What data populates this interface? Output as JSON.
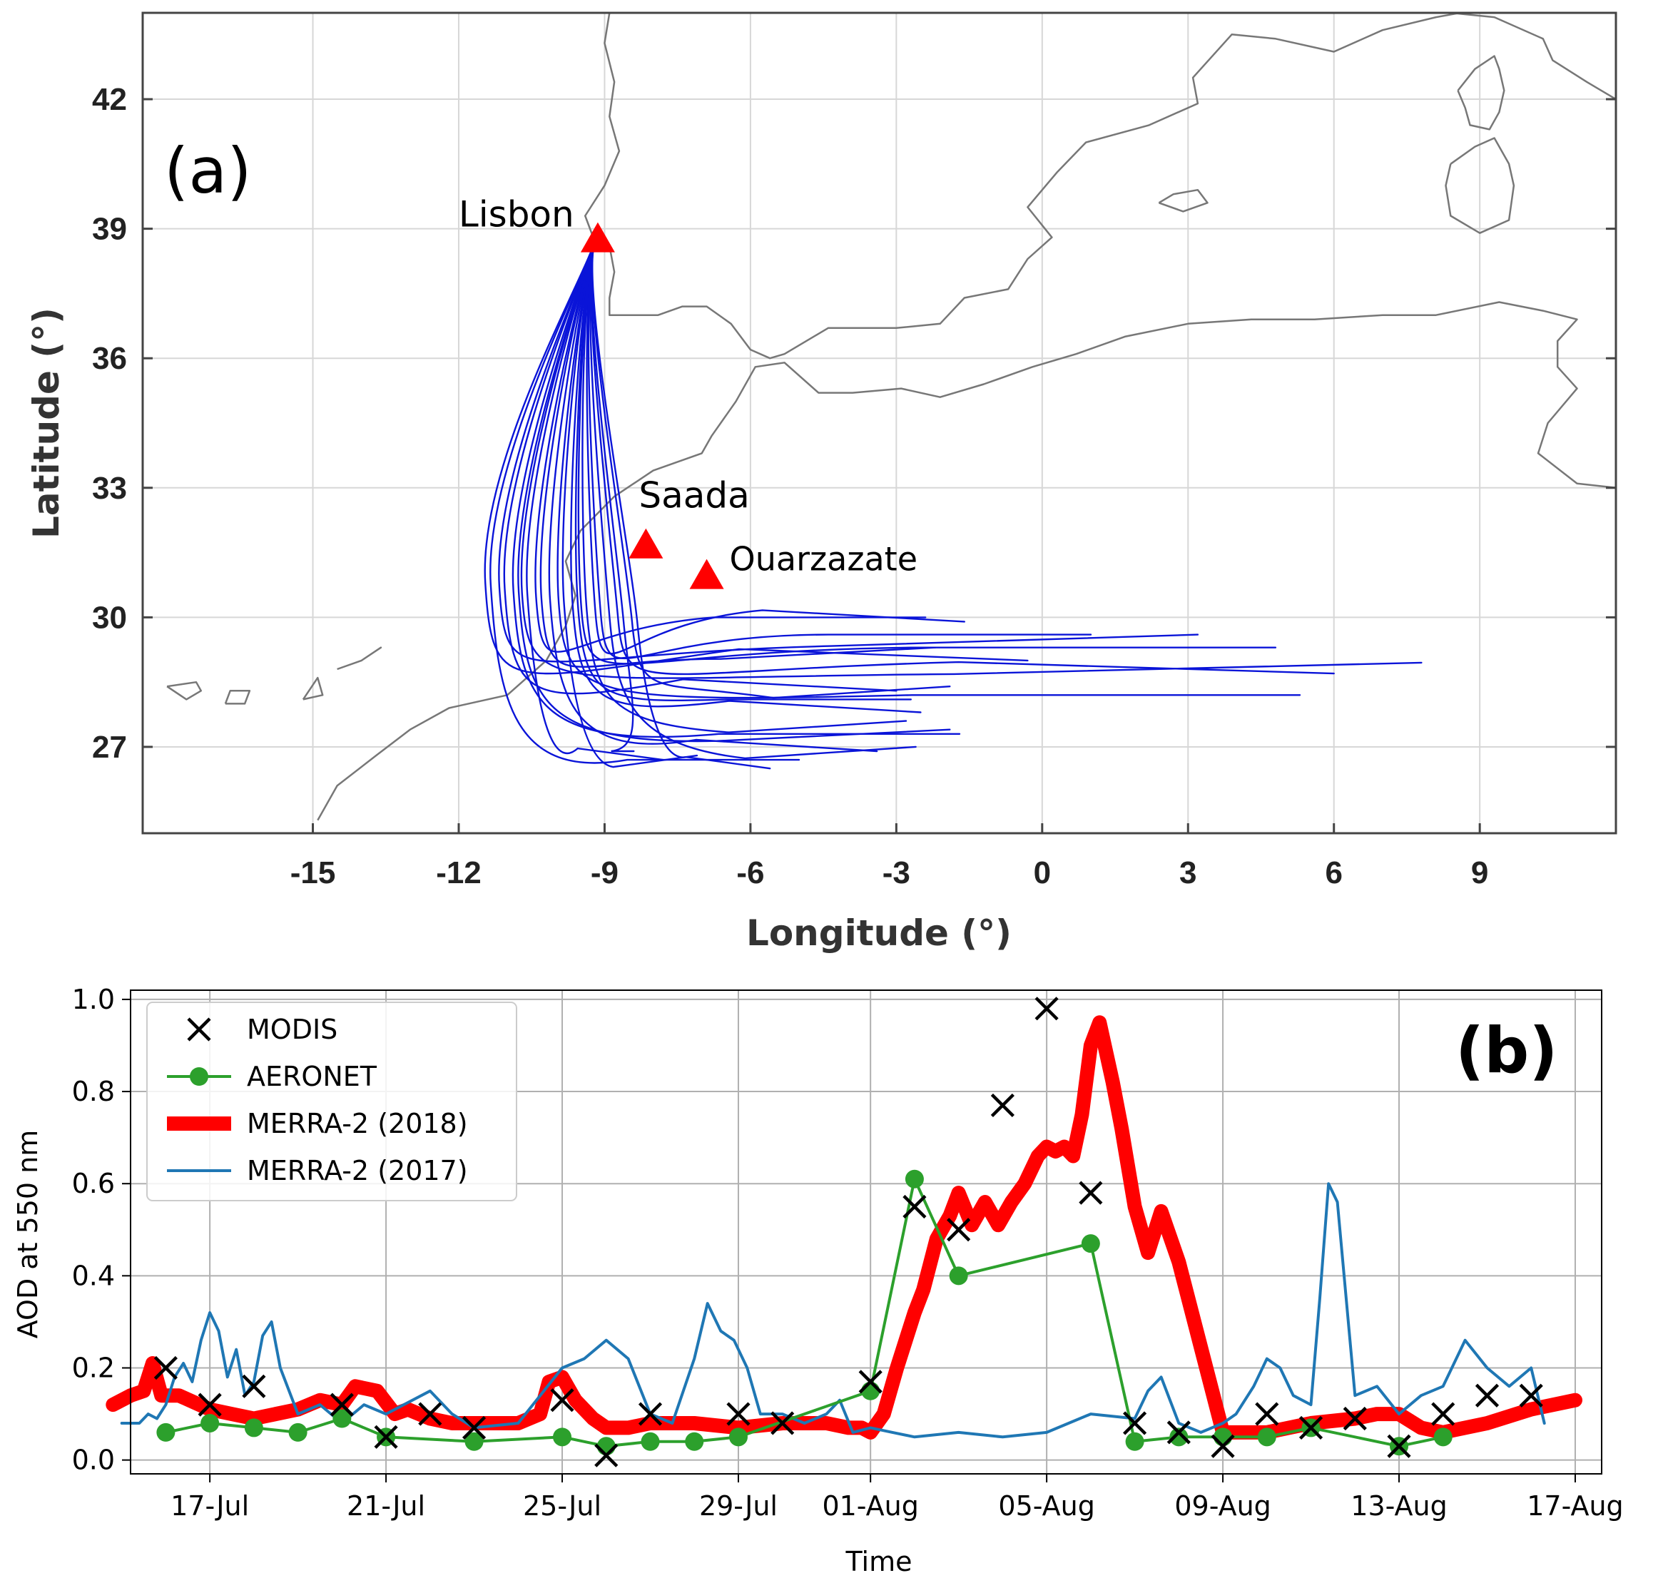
{
  "chart_data": [
    {
      "id": "a",
      "type": "line",
      "panel_label": "(a)",
      "title": "",
      "xlabel": "Longitude (°)",
      "ylabel": "Latitude (°)",
      "xlim": [
        -18.5,
        11.8
      ],
      "ylim": [
        25.0,
        44.0
      ],
      "xticks": [
        -15,
        -12,
        -9,
        -6,
        -3,
        0,
        3,
        6,
        9
      ],
      "xtick_labels": [
        "-15",
        "-12",
        "-9",
        "-6",
        "-3",
        "0",
        "3",
        "6",
        "9"
      ],
      "yticks": [
        27,
        30,
        33,
        36,
        39,
        42
      ],
      "ytick_labels": [
        "27",
        "30",
        "33",
        "36",
        "39",
        "42"
      ],
      "grid": true,
      "sites": [
        {
          "name": "Lisbon",
          "lon": -9.14,
          "lat": 38.72,
          "color": "#ff0000"
        },
        {
          "name": "Saada",
          "lon": -8.15,
          "lat": 31.63,
          "color": "#ff0000"
        },
        {
          "name": "Ouarzazate",
          "lon": -6.9,
          "lat": 30.92,
          "color": "#ff0000"
        }
      ],
      "trajectory_color": "#0a14d8",
      "trajectory_origin": {
        "lon": -9.2,
        "lat": 38.7
      },
      "trajectory_endpoints": [
        {
          "lon": -0.3,
          "lat": 29.0
        },
        {
          "lon": 4.8,
          "lat": 29.3
        },
        {
          "lon": 7.8,
          "lat": 28.95
        },
        {
          "lon": 6.0,
          "lat": 28.7
        },
        {
          "lon": 5.3,
          "lat": 28.2
        },
        {
          "lon": 3.2,
          "lat": 29.6
        },
        {
          "lon": -1.6,
          "lat": 29.9
        },
        {
          "lon": -2.4,
          "lat": 30.0
        },
        {
          "lon": -1.9,
          "lat": 28.4
        },
        {
          "lon": -2.5,
          "lat": 27.8
        },
        {
          "lon": -1.7,
          "lat": 27.3
        },
        {
          "lon": -2.6,
          "lat": 27.0
        },
        {
          "lon": -3.4,
          "lat": 26.9
        },
        {
          "lon": -5.0,
          "lat": 26.7
        },
        {
          "lon": -2.8,
          "lat": 27.6
        },
        {
          "lon": -7.8,
          "lat": 26.7
        },
        {
          "lon": -8.4,
          "lat": 26.9
        },
        {
          "lon": -7.1,
          "lat": 26.8
        },
        {
          "lon": -3.0,
          "lat": 28.3
        },
        {
          "lon": 1.0,
          "lat": 29.6
        },
        {
          "lon": -2.2,
          "lat": 29.3
        },
        {
          "lon": -5.6,
          "lat": 26.5
        },
        {
          "lon": -2.7,
          "lat": 28.1
        },
        {
          "lon": -1.9,
          "lat": 27.4
        }
      ],
      "coastlines": [
        [
          [
            -14.9,
            25.3
          ],
          [
            -14.5,
            26.1
          ],
          [
            -13.7,
            26.8
          ],
          [
            -13.0,
            27.4
          ],
          [
            -12.2,
            27.9
          ],
          [
            -11.0,
            28.2
          ],
          [
            -10.2,
            29.0
          ],
          [
            -9.8,
            29.8
          ],
          [
            -9.6,
            30.5
          ],
          [
            -9.8,
            31.3
          ],
          [
            -9.5,
            32.0
          ],
          [
            -8.8,
            32.8
          ],
          [
            -8.0,
            33.4
          ],
          [
            -7.0,
            33.8
          ],
          [
            -6.8,
            34.2
          ],
          [
            -6.3,
            35.0
          ],
          [
            -5.9,
            35.8
          ],
          [
            -5.3,
            35.9
          ],
          [
            -4.6,
            35.2
          ],
          [
            -3.9,
            35.2
          ],
          [
            -2.9,
            35.3
          ],
          [
            -2.1,
            35.1
          ],
          [
            -1.2,
            35.4
          ],
          [
            -0.2,
            35.8
          ],
          [
            0.7,
            36.1
          ],
          [
            1.7,
            36.5
          ],
          [
            3.0,
            36.8
          ],
          [
            4.3,
            36.9
          ],
          [
            5.6,
            36.9
          ],
          [
            7.0,
            37.0
          ],
          [
            8.1,
            37.0
          ],
          [
            9.4,
            37.3
          ],
          [
            10.3,
            37.1
          ],
          [
            11.0,
            36.9
          ],
          [
            10.6,
            36.4
          ],
          [
            10.6,
            35.8
          ],
          [
            11.0,
            35.3
          ],
          [
            10.4,
            34.5
          ],
          [
            10.2,
            33.8
          ],
          [
            11.0,
            33.1
          ],
          [
            11.8,
            33.0
          ]
        ],
        [
          [
            -8.9,
            44.0
          ],
          [
            -9.0,
            43.3
          ],
          [
            -8.8,
            42.4
          ],
          [
            -8.9,
            41.6
          ],
          [
            -8.7,
            40.8
          ],
          [
            -9.0,
            40.0
          ],
          [
            -9.4,
            39.3
          ],
          [
            -9.2,
            38.7
          ],
          [
            -8.9,
            38.6
          ],
          [
            -8.8,
            38.0
          ],
          [
            -8.9,
            37.4
          ],
          [
            -8.9,
            37.0
          ],
          [
            -7.9,
            37.0
          ],
          [
            -7.4,
            37.2
          ],
          [
            -6.9,
            37.2
          ],
          [
            -6.4,
            36.8
          ],
          [
            -6.0,
            36.2
          ],
          [
            -5.6,
            36.0
          ],
          [
            -5.3,
            36.1
          ],
          [
            -4.4,
            36.7
          ],
          [
            -3.0,
            36.7
          ],
          [
            -2.1,
            36.8
          ],
          [
            -1.6,
            37.4
          ],
          [
            -0.7,
            37.6
          ],
          [
            -0.3,
            38.3
          ],
          [
            0.2,
            38.8
          ],
          [
            -0.3,
            39.5
          ],
          [
            0.3,
            40.3
          ],
          [
            0.9,
            41.0
          ],
          [
            2.2,
            41.4
          ],
          [
            3.2,
            41.9
          ],
          [
            3.1,
            42.5
          ],
          [
            3.9,
            43.5
          ],
          [
            4.8,
            43.4
          ],
          [
            6.0,
            43.1
          ],
          [
            7.0,
            43.6
          ],
          [
            8.1,
            43.9
          ],
          [
            8.6,
            44.0
          ]
        ],
        [
          [
            8.4,
            44.0
          ],
          [
            9.3,
            43.9
          ],
          [
            10.3,
            43.4
          ],
          [
            10.5,
            42.9
          ],
          [
            11.2,
            42.4
          ],
          [
            11.8,
            42.0
          ]
        ],
        [
          [
            8.55,
            42.2
          ],
          [
            8.7,
            41.8
          ],
          [
            8.8,
            41.4
          ],
          [
            9.2,
            41.3
          ],
          [
            9.4,
            41.7
          ],
          [
            9.5,
            42.2
          ],
          [
            9.4,
            42.7
          ],
          [
            9.3,
            43.0
          ],
          [
            8.9,
            42.7
          ],
          [
            8.55,
            42.2
          ]
        ],
        [
          [
            8.4,
            40.5
          ],
          [
            8.3,
            40.0
          ],
          [
            8.4,
            39.3
          ],
          [
            9.0,
            38.9
          ],
          [
            9.6,
            39.2
          ],
          [
            9.7,
            40.0
          ],
          [
            9.6,
            40.5
          ],
          [
            9.3,
            41.1
          ],
          [
            8.9,
            40.9
          ],
          [
            8.4,
            40.5
          ]
        ],
        [
          [
            2.4,
            39.6
          ],
          [
            2.9,
            39.4
          ],
          [
            3.4,
            39.6
          ],
          [
            3.2,
            39.9
          ],
          [
            2.7,
            39.8
          ],
          [
            2.4,
            39.6
          ]
        ],
        [
          [
            -18.0,
            28.4
          ],
          [
            -17.6,
            28.1
          ],
          [
            -17.3,
            28.3
          ],
          [
            -17.4,
            28.5
          ],
          [
            -18.0,
            28.4
          ]
        ],
        [
          [
            -16.8,
            28.0
          ],
          [
            -16.4,
            28.0
          ],
          [
            -16.3,
            28.3
          ],
          [
            -16.7,
            28.3
          ],
          [
            -16.8,
            28.0
          ]
        ],
        [
          [
            -15.2,
            28.1
          ],
          [
            -14.9,
            28.6
          ],
          [
            -14.8,
            28.2
          ],
          [
            -15.2,
            28.1
          ]
        ],
        [
          [
            -14.5,
            28.8
          ],
          [
            -14.0,
            29.0
          ],
          [
            -13.6,
            29.3
          ],
          [
            -14.0,
            29.0
          ],
          [
            -14.5,
            28.8
          ]
        ]
      ]
    },
    {
      "id": "b",
      "type": "line",
      "panel_label": "(b)",
      "title": "",
      "xlabel": "Time",
      "ylabel": "AOD at 550 nm",
      "xlim": [
        -1.8,
        31.6
      ],
      "ylim": [
        -0.03,
        1.02
      ],
      "x_unit": "days since 17-Jul (2018)",
      "xticks": [
        0,
        4,
        8,
        12,
        15,
        19,
        23,
        27,
        31
      ],
      "xtick_labels": [
        "17-Jul",
        "21-Jul",
        "25-Jul",
        "29-Jul",
        "01-Aug",
        "05-Aug",
        "09-Aug",
        "13-Aug",
        "17-Aug"
      ],
      "yticks": [
        0.0,
        0.2,
        0.4,
        0.6,
        0.8,
        1.0
      ],
      "ytick_labels": [
        "0.0",
        "0.2",
        "0.4",
        "0.6",
        "0.8",
        "1.0"
      ],
      "grid": true,
      "legend_position": "top-left",
      "series": [
        {
          "name": "MODIS",
          "kind": "marker-x",
          "color": "#000000",
          "x": [
            -1.0,
            0.0,
            1.0,
            3.0,
            4.0,
            5.0,
            6.0,
            8.0,
            9.0,
            10.0,
            12.0,
            13.0,
            15.0,
            16.0,
            17.0,
            18.0,
            19.0,
            20.0,
            21.0,
            22.0,
            23.0,
            24.0,
            25.0,
            26.0,
            27.0,
            28.0,
            29.0,
            30.0
          ],
          "y": [
            0.2,
            0.12,
            0.16,
            0.12,
            0.05,
            0.1,
            0.07,
            0.13,
            0.01,
            0.1,
            0.1,
            0.08,
            0.17,
            0.55,
            0.5,
            0.77,
            0.98,
            0.58,
            0.08,
            0.06,
            0.03,
            0.1,
            0.07,
            0.09,
            0.03,
            0.1,
            0.14,
            0.14
          ]
        },
        {
          "name": "AERONET",
          "kind": "line-dot",
          "color": "#2ca02c",
          "x": [
            -1.0,
            0.0,
            1.0,
            2.0,
            3.0,
            4.0,
            6.0,
            8.0,
            9.0,
            10.0,
            11.0,
            12.0,
            15.0,
            16.0,
            17.0,
            20.0,
            21.0,
            22.0,
            23.0,
            24.0,
            25.0,
            27.0,
            28.0
          ],
          "y": [
            0.06,
            0.08,
            0.07,
            0.06,
            0.09,
            0.05,
            0.04,
            0.05,
            0.03,
            0.04,
            0.04,
            0.05,
            0.15,
            0.61,
            0.4,
            0.47,
            0.04,
            0.05,
            0.05,
            0.05,
            0.07,
            0.03,
            0.05
          ]
        },
        {
          "name": "MERRA-2 (2018)",
          "kind": "thick-line",
          "color": "#ff0000",
          "x": [
            -2.2,
            -1.8,
            -1.5,
            -1.3,
            -1.1,
            -0.7,
            0.0,
            0.5,
            1.0,
            1.5,
            2.0,
            2.5,
            3.0,
            3.3,
            3.8,
            4.2,
            4.5,
            5.0,
            5.5,
            6.0,
            6.5,
            7.0,
            7.5,
            7.7,
            8.0,
            8.3,
            8.7,
            9.0,
            9.5,
            10.0,
            11.0,
            12.0,
            13.0,
            14.0,
            14.5,
            14.8,
            15.0,
            15.3,
            15.6,
            16.0,
            16.2,
            16.5,
            16.8,
            17.0,
            17.3,
            17.6,
            17.9,
            18.2,
            18.5,
            18.8,
            19.0,
            19.2,
            19.4,
            19.6,
            19.8,
            20.0,
            20.2,
            20.5,
            20.7,
            21.0,
            21.3,
            21.6,
            22.0,
            23.0,
            24.0,
            25.0,
            26.0,
            26.5,
            27.0,
            27.5,
            28.0,
            29.0,
            30.0,
            31.0
          ],
          "y": [
            0.12,
            0.14,
            0.15,
            0.21,
            0.14,
            0.14,
            0.11,
            0.1,
            0.09,
            0.1,
            0.11,
            0.13,
            0.12,
            0.16,
            0.15,
            0.1,
            0.11,
            0.09,
            0.08,
            0.08,
            0.08,
            0.08,
            0.1,
            0.17,
            0.18,
            0.13,
            0.09,
            0.07,
            0.07,
            0.08,
            0.08,
            0.07,
            0.08,
            0.08,
            0.07,
            0.07,
            0.06,
            0.1,
            0.2,
            0.32,
            0.37,
            0.48,
            0.53,
            0.58,
            0.51,
            0.56,
            0.51,
            0.56,
            0.6,
            0.66,
            0.68,
            0.67,
            0.68,
            0.66,
            0.75,
            0.9,
            0.95,
            0.82,
            0.72,
            0.55,
            0.45,
            0.54,
            0.43,
            0.06,
            0.06,
            0.08,
            0.09,
            0.1,
            0.1,
            0.07,
            0.06,
            0.08,
            0.11,
            0.13
          ]
        },
        {
          "name": "MERRA-2 (2017)",
          "kind": "line",
          "color": "#1f77b4",
          "x": [
            -2.0,
            -1.6,
            -1.4,
            -1.2,
            -1.0,
            -0.8,
            -0.6,
            -0.4,
            -0.2,
            0.0,
            0.2,
            0.4,
            0.6,
            0.8,
            1.0,
            1.2,
            1.4,
            1.6,
            2.0,
            2.5,
            3.0,
            3.5,
            4.0,
            5.0,
            5.5,
            6.0,
            7.0,
            8.0,
            8.5,
            9.0,
            9.5,
            10.0,
            10.5,
            11.0,
            11.3,
            11.6,
            11.9,
            12.2,
            12.5,
            13.0,
            13.5,
            14.0,
            14.3,
            14.6,
            15.0,
            15.5,
            16.0,
            17.0,
            18.0,
            19.0,
            20.0,
            21.0,
            21.3,
            21.6,
            22.0,
            22.5,
            23.0,
            23.3,
            23.7,
            24.0,
            24.3,
            24.6,
            25.0,
            25.2,
            25.4,
            25.6,
            26.0,
            26.5,
            27.0,
            27.5,
            28.0,
            28.5,
            29.0,
            29.5,
            30.0,
            30.3
          ],
          "y": [
            0.08,
            0.08,
            0.1,
            0.09,
            0.12,
            0.18,
            0.21,
            0.17,
            0.26,
            0.32,
            0.28,
            0.18,
            0.24,
            0.14,
            0.17,
            0.27,
            0.3,
            0.2,
            0.1,
            0.12,
            0.08,
            0.12,
            0.1,
            0.15,
            0.1,
            0.07,
            0.08,
            0.2,
            0.22,
            0.26,
            0.22,
            0.1,
            0.08,
            0.22,
            0.34,
            0.28,
            0.26,
            0.2,
            0.1,
            0.1,
            0.08,
            0.1,
            0.13,
            0.06,
            0.07,
            0.06,
            0.05,
            0.06,
            0.05,
            0.06,
            0.1,
            0.09,
            0.15,
            0.18,
            0.08,
            0.06,
            0.08,
            0.1,
            0.16,
            0.22,
            0.2,
            0.14,
            0.12,
            0.35,
            0.6,
            0.56,
            0.14,
            0.16,
            0.1,
            0.14,
            0.16,
            0.26,
            0.2,
            0.16,
            0.2,
            0.08
          ]
        }
      ]
    }
  ]
}
